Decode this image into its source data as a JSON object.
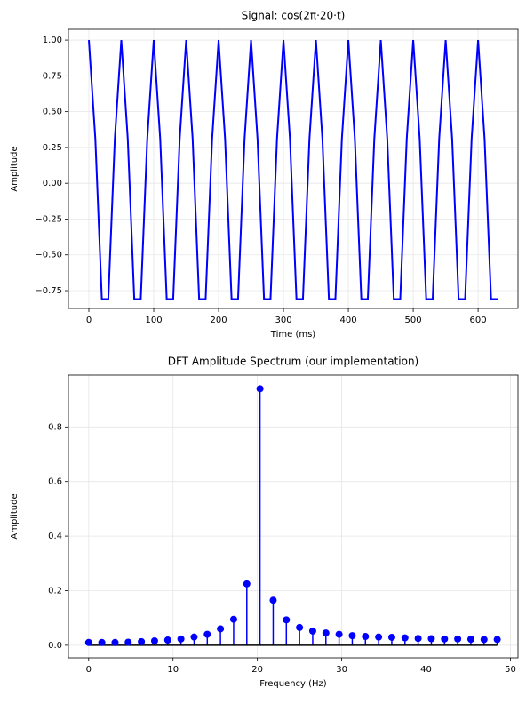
{
  "chart_data": [
    {
      "type": "line",
      "title": "Signal: cos(2π·20·t)",
      "xlabel": "Time (ms)",
      "ylabel": "Amplitude",
      "x": [
        0,
        10,
        20,
        30,
        40,
        50,
        60,
        70,
        80,
        90,
        100,
        110,
        120,
        130,
        140,
        150,
        160,
        170,
        180,
        190,
        200,
        210,
        220,
        230,
        240,
        250,
        260,
        270,
        280,
        290,
        300,
        310,
        320,
        330,
        340,
        350,
        360,
        370,
        380,
        390,
        400,
        410,
        420,
        430,
        440,
        450,
        460,
        470,
        480,
        490,
        500,
        510,
        520,
        530,
        540,
        550,
        560,
        570,
        580,
        590,
        600,
        610,
        620,
        630
      ],
      "values": [
        1,
        0.309,
        -0.809,
        -0.809,
        0.309,
        1,
        0.309,
        -0.809,
        -0.809,
        0.309,
        1,
        0.309,
        -0.809,
        -0.809,
        0.309,
        1,
        0.309,
        -0.809,
        -0.809,
        0.309,
        1,
        0.309,
        -0.809,
        -0.809,
        0.309,
        1,
        0.309,
        -0.809,
        -0.809,
        0.309,
        1,
        0.309,
        -0.809,
        -0.809,
        0.309,
        1,
        0.309,
        -0.809,
        -0.809,
        0.309,
        1,
        0.309,
        -0.809,
        -0.809,
        0.309,
        1,
        0.309,
        -0.809,
        -0.809,
        0.309,
        1,
        0.309,
        -0.809,
        -0.809,
        0.309,
        1,
        0.309,
        -0.809,
        -0.809,
        0.309,
        1,
        0.309,
        -0.809,
        -0.809
      ],
      "color": "#0000ff",
      "xlim": [
        -31.5,
        661.5
      ],
      "xticks": [
        0,
        100,
        200,
        300,
        400,
        500,
        600
      ],
      "ylim": [
        -0.874,
        1.075
      ],
      "yticks": [
        {
          "value": -0.75,
          "label": "−0.75"
        },
        {
          "value": -0.5,
          "label": "−0.50"
        },
        {
          "value": -0.25,
          "label": "−0.25"
        },
        {
          "value": 0,
          "label": "0.00"
        },
        {
          "value": 0.25,
          "label": "0.25"
        },
        {
          "value": 0.5,
          "label": "0.50"
        },
        {
          "value": 0.75,
          "label": "0.75"
        },
        {
          "value": 1,
          "label": "1.00"
        }
      ],
      "grid": true
    },
    {
      "type": "stem",
      "title": "DFT Amplitude Spectrum (our implementation)",
      "xlabel": "Frequency (Hz)",
      "ylabel": "Amplitude",
      "x": [
        0,
        1.5625,
        3.125,
        4.6875,
        6.25,
        7.8125,
        9.375,
        10.9375,
        12.5,
        14.0625,
        15.625,
        17.1875,
        18.75,
        20.3125,
        21.875,
        23.4375,
        25,
        26.5625,
        28.125,
        29.6875,
        31.25,
        32.8125,
        34.375,
        35.9375,
        37.5,
        39.0625,
        40.625,
        42.1875,
        43.75,
        45.3125,
        46.875,
        48.4375
      ],
      "values": [
        0.01,
        0.01,
        0.01,
        0.011,
        0.013,
        0.016,
        0.019,
        0.023,
        0.03,
        0.04,
        0.06,
        0.095,
        0.225,
        0.94,
        0.165,
        0.093,
        0.065,
        0.052,
        0.045,
        0.04,
        0.035,
        0.032,
        0.03,
        0.029,
        0.027,
        0.025,
        0.024,
        0.023,
        0.023,
        0.022,
        0.021,
        0.021
      ],
      "color": "#0000ff",
      "xlim": [
        -2.4,
        50.9
      ],
      "xticks": [
        0,
        10,
        20,
        30,
        40,
        50
      ],
      "ylim": [
        -0.046,
        0.99
      ],
      "yticks": [
        {
          "value": 0,
          "label": "0.0"
        },
        0.2,
        0.4,
        0.6,
        0.8
      ],
      "grid": true
    }
  ]
}
